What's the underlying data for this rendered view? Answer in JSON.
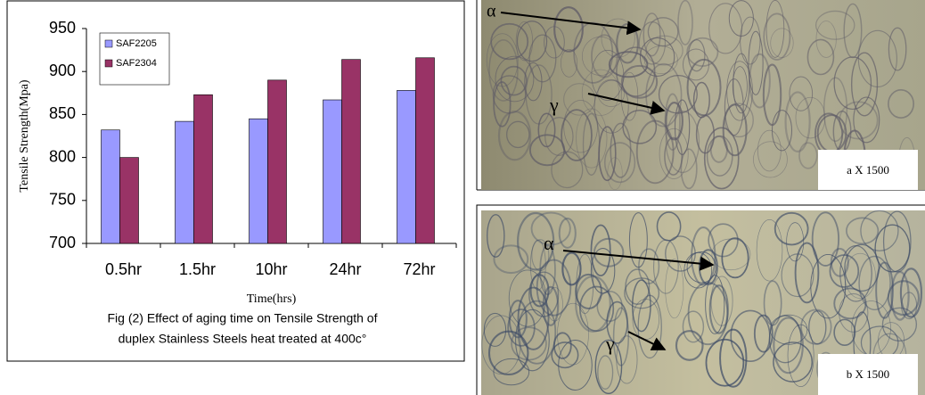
{
  "chart_data": {
    "type": "bar",
    "caption": [
      "Fig (2) Effect of aging time on Tensile Strength of",
      "duplex Stainless Steels heat treated at 400c°"
    ],
    "x_label": "Time(hrs)",
    "y_label": "Tensile Strength(Mpa)",
    "categories": [
      "0.5hr",
      "1.5hr",
      "10hr",
      "24hr",
      "72hr"
    ],
    "series": [
      {
        "name": "SAF2205",
        "color": "#9999ff",
        "values": [
          832,
          842,
          845,
          867,
          878
        ]
      },
      {
        "name": "SAF2304",
        "color": "#993366",
        "values": [
          800,
          873,
          890,
          914,
          916
        ]
      }
    ],
    "ylim": [
      700,
      950
    ],
    "yticks": [
      700,
      750,
      800,
      850,
      900,
      950
    ],
    "grid": false,
    "legend": "top-left"
  },
  "micrographs": [
    {
      "scale": "a  X  1500",
      "alpha": "α",
      "gamma": "γ"
    },
    {
      "scale": "b  X  1500",
      "alpha": "α",
      "gamma": "γ"
    }
  ]
}
